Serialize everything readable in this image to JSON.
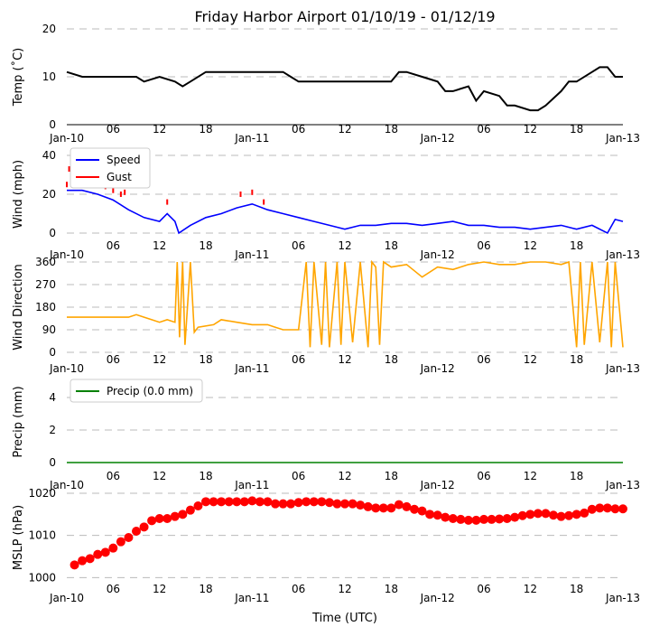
{
  "chart_data": {
    "title": "Friday Harbor Airport 01/10/19 - 01/12/19",
    "xlabel": "Time (UTC)",
    "x_ticks": [
      "Jan-10",
      "06",
      "12",
      "18",
      "Jan-11",
      "06",
      "12",
      "18",
      "Jan-12",
      "06",
      "12",
      "18",
      "Jan-13"
    ],
    "x_range_hours": [
      0,
      72
    ],
    "panels": [
      {
        "type": "line",
        "ylabel": "Temp ($^\\circ$C)",
        "ylabel_display": "Temp (˚C)",
        "ylim": [
          0,
          20
        ],
        "yticks": [
          "0",
          "10",
          "20"
        ],
        "series": [
          {
            "name": "",
            "color": "#000000",
            "x": [
              0,
              2,
              4,
              6,
              8,
              9,
              10,
              12,
              14,
              15,
              16,
              18,
              20,
              22,
              24,
              26,
              28,
              29,
              30,
              32,
              34,
              36,
              38,
              40,
              42,
              43,
              44,
              46,
              48,
              49,
              50,
              52,
              53,
              54,
              56,
              57,
              58,
              60,
              61,
              62,
              64,
              65,
              66,
              68,
              69,
              70,
              71,
              72
            ],
            "y": [
              11,
              10,
              10,
              10,
              10,
              10,
              9,
              10,
              9,
              8,
              9,
              11,
              11,
              11,
              11,
              11,
              11,
              10,
              9,
              9,
              9,
              9,
              9,
              9,
              9,
              11,
              11,
              10,
              9,
              7,
              7,
              8,
              5,
              7,
              6,
              4,
              4,
              3,
              3,
              4,
              7,
              9,
              9,
              11,
              12,
              12,
              10,
              10
            ]
          }
        ]
      },
      {
        "type": "line",
        "ylabel": "Wind (mph)",
        "ylim": [
          0,
          40
        ],
        "yticks": [
          "0",
          "20",
          "40"
        ],
        "legend": "top-left",
        "series": [
          {
            "name": "Speed",
            "color": "#0000ff",
            "x": [
              0,
              2,
              4,
              6,
              8,
              10,
              12,
              13,
              14,
              14.5,
              16,
              18,
              20,
              22,
              24,
              26,
              28,
              30,
              32,
              34,
              36,
              38,
              40,
              42,
              44,
              46,
              48,
              50,
              52,
              54,
              56,
              58,
              60,
              62,
              64,
              66,
              68,
              70,
              71,
              72
            ],
            "y": [
              22,
              22,
              20,
              17,
              12,
              8,
              6,
              10,
              6,
              0,
              4,
              8,
              10,
              13,
              15,
              12,
              10,
              8,
              6,
              4,
              2,
              4,
              4,
              5,
              5,
              4,
              5,
              6,
              4,
              4,
              3,
              3,
              2,
              3,
              4,
              2,
              4,
              0,
              7,
              6
            ]
          },
          {
            "name": "Gust",
            "color": "#ff0000",
            "x": [
              0,
              0.3,
              0.6,
              1,
              2,
              3,
              4,
              5,
              6,
              7,
              7.5,
              13,
              22.5,
              24,
              25.5
            ],
            "y": [
              25,
              33,
              38,
              30,
              32,
              28,
              26,
              24,
              22,
              20,
              21,
              16,
              20,
              21,
              16
            ]
          }
        ]
      },
      {
        "type": "line",
        "ylabel": "Wind Direction",
        "ylim": [
          0,
          360
        ],
        "yticks": [
          "0",
          "90",
          "180",
          "270",
          "360"
        ],
        "series": [
          {
            "name": "",
            "color": "#ffa500",
            "x": [
              0,
              8,
              9,
              10,
              11,
              12,
              13,
              14,
              14.3,
              14.6,
              15,
              15.3,
              16,
              16.5,
              17,
              19,
              20,
              22,
              24,
              26,
              27,
              28,
              29,
              30,
              31,
              31.5,
              32,
              33,
              33.5,
              34,
              35,
              35.5,
              36,
              37,
              38,
              39,
              39.5,
              40,
              40.5,
              41,
              42,
              44,
              46,
              48,
              50,
              52,
              54,
              56,
              58,
              60,
              62,
              64,
              65,
              66,
              66.5,
              67,
              68,
              69,
              70,
              70.5,
              71,
              72
            ],
            "y": [
              140,
              140,
              150,
              140,
              130,
              120,
              130,
              120,
              360,
              60,
              360,
              30,
              360,
              80,
              100,
              110,
              130,
              120,
              110,
              110,
              100,
              90,
              90,
              90,
              360,
              20,
              360,
              30,
              360,
              20,
              360,
              30,
              360,
              40,
              360,
              20,
              360,
              340,
              30,
              360,
              340,
              350,
              300,
              340,
              330,
              350,
              360,
              350,
              350,
              360,
              360,
              350,
              360,
              20,
              360,
              30,
              360,
              40,
              360,
              20,
              360,
              20
            ]
          }
        ]
      },
      {
        "type": "line",
        "ylabel": "Precip (mm)",
        "ylim": [
          0,
          5
        ],
        "yticks": [
          "0",
          "2",
          "4"
        ],
        "legend": "top-left",
        "series": [
          {
            "name": "Precip (0.0 mm)",
            "color": "#008000",
            "x": [
              0,
              72
            ],
            "y": [
              0,
              0
            ]
          }
        ]
      },
      {
        "type": "scatter",
        "ylabel": "MSLP (hPa)",
        "ylim": [
          999,
          1020
        ],
        "yticks": [
          "1000",
          "1010",
          "1020"
        ],
        "series": [
          {
            "name": "",
            "color": "#ff0000",
            "x": [
              1,
              2,
              3,
              4,
              5,
              6,
              7,
              8,
              9,
              10,
              11,
              12,
              13,
              14,
              15,
              16,
              17,
              18,
              19,
              20,
              21,
              22,
              23,
              24,
              25,
              26,
              27,
              28,
              29,
              30,
              31,
              32,
              33,
              34,
              35,
              36,
              37,
              38,
              39,
              40,
              41,
              42,
              43,
              44,
              45,
              46,
              47,
              48,
              49,
              50,
              51,
              52,
              53,
              54,
              55,
              56,
              57,
              58,
              59,
              60,
              61,
              62,
              63,
              64,
              65,
              66,
              67,
              68,
              69,
              70,
              71,
              72
            ],
            "y": [
              1003,
              1004,
              1004.5,
              1005.5,
              1006,
              1007,
              1008.5,
              1009.5,
              1011,
              1012,
              1013.5,
              1014,
              1014,
              1014.5,
              1015,
              1016,
              1017,
              1018,
              1018,
              1018,
              1018,
              1018,
              1018,
              1018.2,
              1018,
              1018,
              1017.5,
              1017.5,
              1017.5,
              1017.8,
              1018,
              1018,
              1018,
              1017.8,
              1017.5,
              1017.5,
              1017.5,
              1017.2,
              1016.8,
              1016.5,
              1016.5,
              1016.5,
              1017.3,
              1016.8,
              1016.2,
              1015.8,
              1015,
              1014.8,
              1014.3,
              1014,
              1013.8,
              1013.6,
              1013.6,
              1013.8,
              1013.8,
              1013.9,
              1014,
              1014.3,
              1014.7,
              1015,
              1015.2,
              1015.2,
              1014.8,
              1014.5,
              1014.7,
              1015,
              1015.3,
              1016.2,
              1016.5,
              1016.5,
              1016.3,
              1016.3
            ]
          }
        ]
      }
    ]
  }
}
